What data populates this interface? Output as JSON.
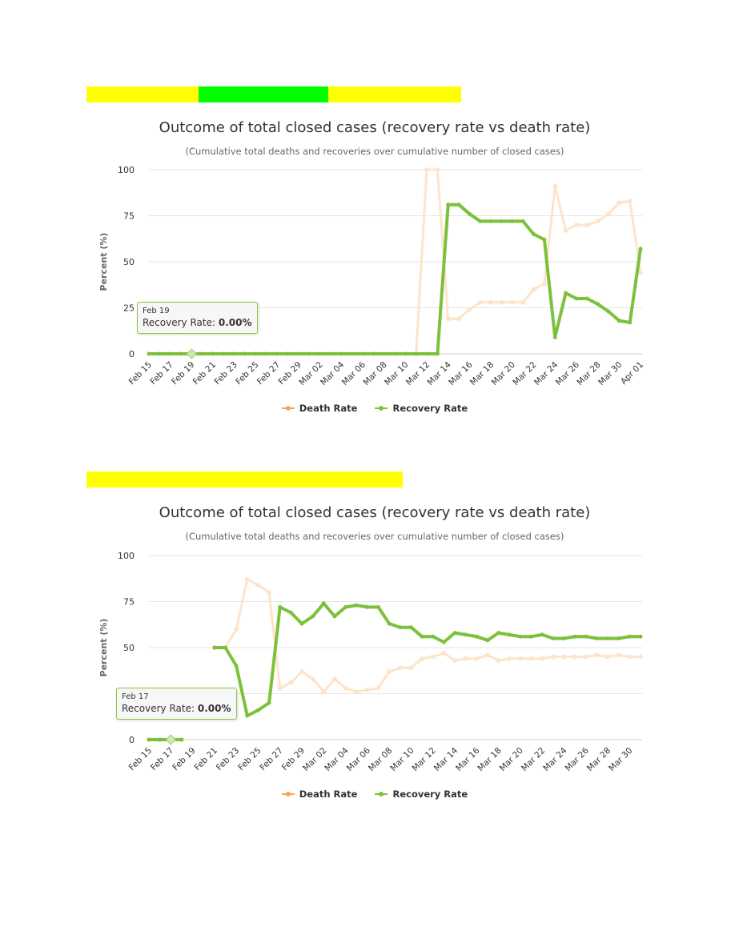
{
  "colors": {
    "highlight_yellow": "#ffff00",
    "highlight_green": "#00ff00",
    "death": "#f7a35c",
    "death_faded": "#fde4cb",
    "recovery": "#7cc13b",
    "grid": "#e6e6e6"
  },
  "charts": [
    {
      "title": "Outcome of total closed cases (recovery rate vs death rate)",
      "subtitle": "(Cumulative total deaths and recoveries over cumulative number of closed cases)",
      "legend": [
        "Death Rate",
        "Recovery Rate"
      ],
      "tooltip": {
        "date": "Feb 19",
        "label": "Recovery Rate:",
        "value": "0.00%"
      }
    },
    {
      "title": "Outcome of total closed cases (recovery rate vs death rate)",
      "subtitle": "(Cumulative total deaths and recoveries over cumulative number of closed cases)",
      "legend": [
        "Death Rate",
        "Recovery Rate"
      ],
      "tooltip": {
        "date": "Feb 17",
        "label": "Recovery Rate:",
        "value": "0.00%"
      }
    }
  ],
  "chart_data": [
    {
      "type": "line",
      "title": "Outcome of total closed cases (recovery rate vs death rate)",
      "subtitle": "(Cumulative total deaths and recoveries over cumulative number of closed cases)",
      "ylabel": "Percent (%)",
      "ylim": [
        0,
        100
      ],
      "yticks": [
        0,
        25,
        50,
        75,
        100
      ],
      "x": [
        "Feb 15",
        "Feb 16",
        "Feb 17",
        "Feb 18",
        "Feb 19",
        "Feb 20",
        "Feb 21",
        "Feb 22",
        "Feb 23",
        "Feb 24",
        "Feb 25",
        "Feb 26",
        "Feb 27",
        "Feb 28",
        "Feb 29",
        "Mar 01",
        "Mar 02",
        "Mar 03",
        "Mar 04",
        "Mar 05",
        "Mar 06",
        "Mar 07",
        "Mar 08",
        "Mar 09",
        "Mar 10",
        "Mar 11",
        "Mar 12",
        "Mar 13",
        "Mar 14",
        "Mar 15",
        "Mar 16",
        "Mar 17",
        "Mar 18",
        "Mar 19",
        "Mar 20",
        "Mar 21",
        "Mar 22",
        "Mar 23",
        "Mar 24",
        "Mar 25",
        "Mar 26",
        "Mar 27",
        "Mar 28",
        "Mar 29",
        "Mar 30",
        "Mar 31",
        "Apr 01"
      ],
      "xtick_labels": [
        "Feb 15",
        "Feb 17",
        "Feb 19",
        "Feb 21",
        "Feb 23",
        "Feb 25",
        "Feb 27",
        "Feb 29",
        "Mar 02",
        "Mar 04",
        "Mar 06",
        "Mar 08",
        "Mar 10",
        "Mar 12",
        "Mar 14",
        "Mar 16",
        "Mar 18",
        "Mar 20",
        "Mar 22",
        "Mar 24",
        "Mar 26",
        "Mar 28",
        "Mar 30",
        "Apr 01"
      ],
      "series": [
        {
          "name": "Death Rate",
          "faded": true,
          "values": [
            null,
            null,
            null,
            null,
            null,
            null,
            null,
            null,
            null,
            null,
            null,
            null,
            null,
            null,
            null,
            null,
            null,
            null,
            null,
            null,
            null,
            null,
            null,
            null,
            null,
            0,
            100,
            100,
            19,
            19,
            24,
            28,
            28,
            28,
            28,
            28,
            35,
            38,
            91,
            67,
            70,
            70,
            72,
            76,
            82,
            83,
            44
          ]
        },
        {
          "name": "Recovery Rate",
          "faded": false,
          "values": [
            0,
            0,
            0,
            0,
            0,
            0,
            0,
            0,
            0,
            0,
            0,
            0,
            0,
            0,
            0,
            0,
            0,
            0,
            0,
            0,
            0,
            0,
            0,
            0,
            0,
            0,
            0,
            0,
            81,
            81,
            76,
            72,
            72,
            72,
            72,
            72,
            65,
            62,
            9,
            33,
            30,
            30,
            27,
            23,
            18,
            17,
            57
          ]
        }
      ],
      "tooltip": {
        "x": "Feb 19",
        "series": "Recovery Rate",
        "value": 0
      }
    },
    {
      "type": "line",
      "title": "Outcome of total closed cases (recovery rate vs death rate)",
      "subtitle": "(Cumulative total deaths and recoveries over cumulative number of closed cases)",
      "ylabel": "Percent (%)",
      "ylim": [
        0,
        100
      ],
      "yticks": [
        0,
        25,
        50,
        75,
        100
      ],
      "x": [
        "Feb 15",
        "Feb 16",
        "Feb 17",
        "Feb 18",
        "Feb 19",
        "Feb 20",
        "Feb 21",
        "Feb 22",
        "Feb 23",
        "Feb 24",
        "Feb 25",
        "Feb 26",
        "Feb 27",
        "Feb 28",
        "Feb 29",
        "Mar 01",
        "Mar 02",
        "Mar 03",
        "Mar 04",
        "Mar 05",
        "Mar 06",
        "Mar 07",
        "Mar 08",
        "Mar 09",
        "Mar 10",
        "Mar 11",
        "Mar 12",
        "Mar 13",
        "Mar 14",
        "Mar 15",
        "Mar 16",
        "Mar 17",
        "Mar 18",
        "Mar 19",
        "Mar 20",
        "Mar 21",
        "Mar 22",
        "Mar 23",
        "Mar 24",
        "Mar 25",
        "Mar 26",
        "Mar 27",
        "Mar 28",
        "Mar 29",
        "Mar 30",
        "Mar 31"
      ],
      "xtick_labels": [
        "Feb 15",
        "Feb 17",
        "Feb 19",
        "Feb 21",
        "Feb 23",
        "Feb 25",
        "Feb 27",
        "Feb 29",
        "Mar 02",
        "Mar 04",
        "Mar 06",
        "Mar 08",
        "Mar 10",
        "Mar 12",
        "Mar 14",
        "Mar 16",
        "Mar 18",
        "Mar 20",
        "Mar 22",
        "Mar 24",
        "Mar 26",
        "Mar 28",
        "Mar 30"
      ],
      "series": [
        {
          "name": "Death Rate",
          "faded": true,
          "values": [
            0,
            0,
            0,
            0,
            null,
            null,
            50,
            50,
            60,
            87,
            84,
            80,
            28,
            31,
            37,
            33,
            26,
            33,
            28,
            26,
            27,
            28,
            37,
            39,
            39,
            44,
            45,
            47,
            43,
            44,
            44,
            46,
            43,
            44,
            44,
            44,
            44,
            45,
            45,
            45,
            45,
            46,
            45,
            46,
            45,
            45
          ]
        },
        {
          "name": "Recovery Rate",
          "faded": false,
          "values": [
            0,
            0,
            0,
            0,
            null,
            null,
            50,
            50,
            40,
            13,
            16,
            20,
            72,
            69,
            63,
            67,
            74,
            67,
            72,
            73,
            72,
            72,
            63,
            61,
            61,
            56,
            56,
            53,
            58,
            57,
            56,
            54,
            58,
            57,
            56,
            56,
            57,
            55,
            55,
            56,
            56,
            55,
            55,
            55,
            56,
            56
          ]
        }
      ],
      "tooltip": {
        "x": "Feb 17",
        "series": "Recovery Rate",
        "value": 0
      }
    }
  ]
}
